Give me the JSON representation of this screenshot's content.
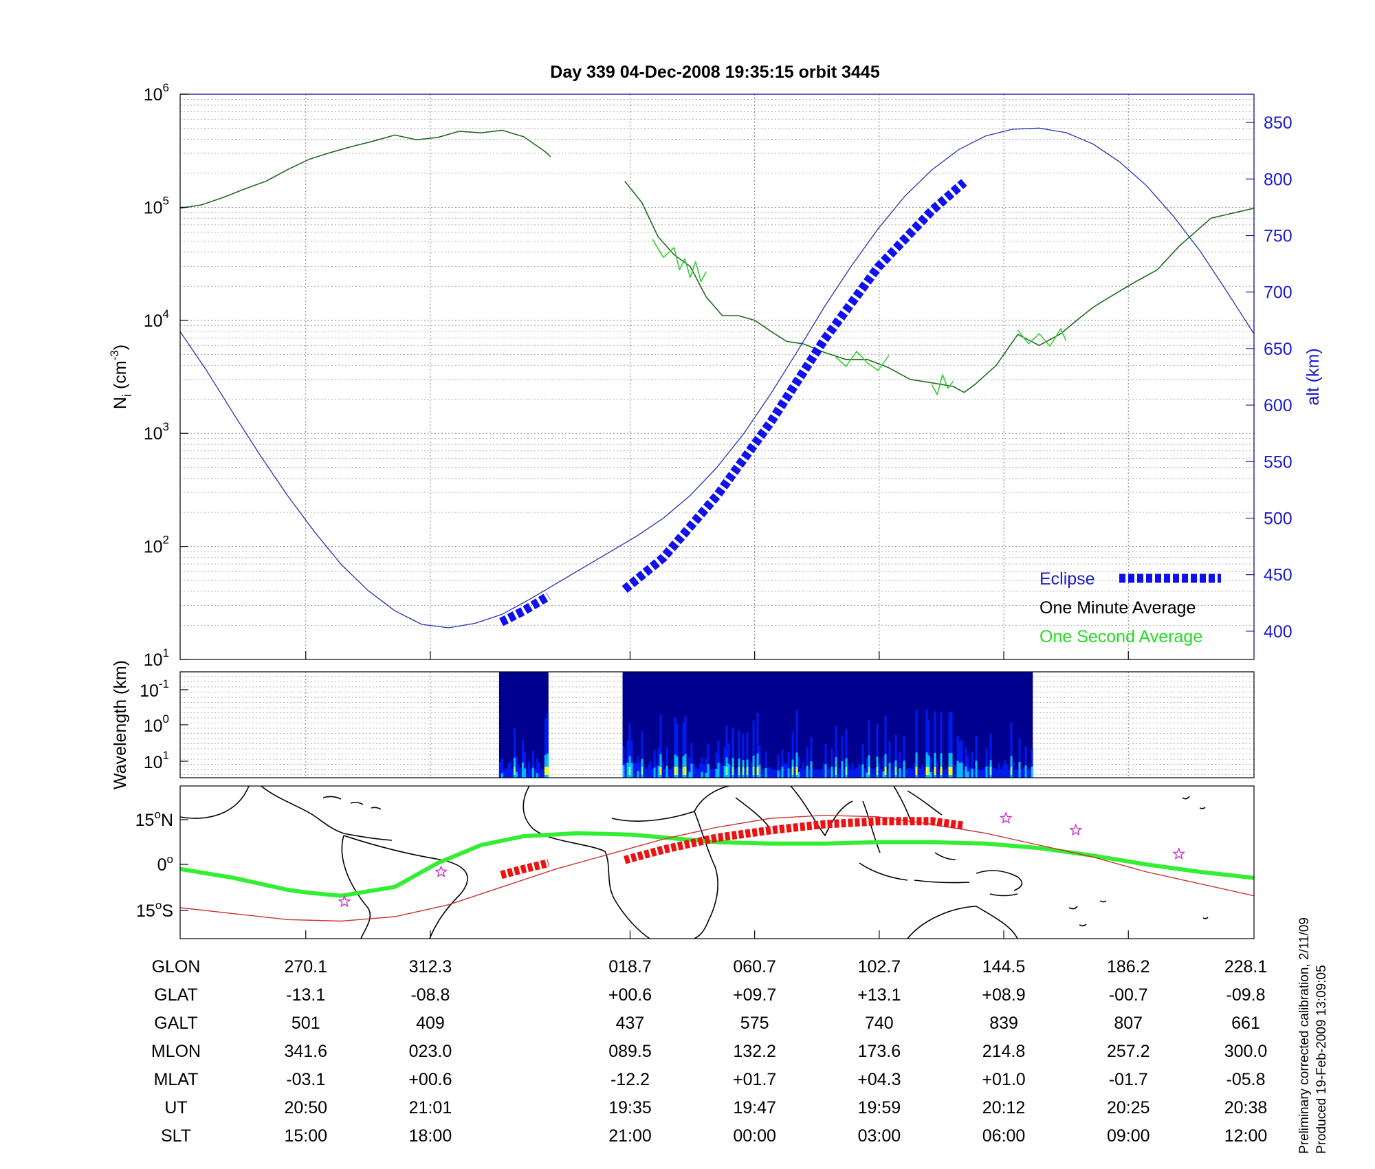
{
  "chart_data": [
    {
      "type": "line",
      "title": "Day 339  04-Dec-2008 19:35:15   orbit 3445",
      "yscale": "log",
      "ylabel": "N",
      "ylabel_sub": "i",
      "ylabel_units": "(cm",
      "ylabel_units_exp": "-3",
      "ylabel_units_close": ")",
      "ylim": [
        10,
        1000000
      ],
      "yticks": [
        {
          "base": "10",
          "exp": "1",
          "value": 10
        },
        {
          "base": "10",
          "exp": "2",
          "value": 100
        },
        {
          "base": "10",
          "exp": "3",
          "value": 1000
        },
        {
          "base": "10",
          "exp": "4",
          "value": 10000
        },
        {
          "base": "10",
          "exp": "5",
          "value": 100000
        },
        {
          "base": "10",
          "exp": "6",
          "value": 1000000
        }
      ],
      "y2label": "alt (km)",
      "y2lim": [
        375,
        875
      ],
      "y2ticks": [
        "400",
        "450",
        "500",
        "550",
        "600",
        "650",
        "700",
        "750",
        "800",
        "850"
      ],
      "xlim": [
        0,
        1
      ],
      "xgrid": [
        0.117,
        0.233,
        0.419,
        0.535,
        0.651,
        0.767,
        0.883
      ],
      "grid": true,
      "legend_position": "bottom-right",
      "legend": [
        {
          "label": "Eclipse",
          "color": "#1010ee"
        },
        {
          "label": "One Minute Average",
          "color": "#000000"
        },
        {
          "label": "One Second Average",
          "color": "#22dd22"
        }
      ],
      "series": [
        {
          "name": "One Minute Average",
          "axis": "left",
          "color": "#1f6b1f",
          "segments": [
            {
              "x": [
                0,
                0.02,
                0.04,
                0.06,
                0.08,
                0.1,
                0.12,
                0.14,
                0.16,
                0.18,
                0.2,
                0.22,
                0.24,
                0.26,
                0.28,
                0.3,
                0.32,
                0.34,
                0.345
              ],
              "y": [
                98000,
                105000,
                122000,
                145000,
                170000,
                215000,
                265000,
                305000,
                345000,
                385000,
                435000,
                395000,
                415000,
                470000,
                455000,
                480000,
                420000,
                310000,
                280000
              ]
            },
            {
              "x": [
                0.414,
                0.43,
                0.445,
                0.46,
                0.475,
                0.49,
                0.505,
                0.52,
                0.535,
                0.55,
                0.565,
                0.58,
                0.6,
                0.62,
                0.64,
                0.66,
                0.68,
                0.7,
                0.72,
                0.73,
                0.74,
                0.76,
                0.78,
                0.8,
                0.82,
                0.835,
                0.85,
                0.87,
                0.89,
                0.91,
                0.93,
                0.96,
                1.0
              ],
              "y": [
                170000,
                110000,
                55000,
                38000,
                30000,
                16000,
                11000,
                11000,
                10000,
                8000,
                6500,
                6200,
                5200,
                4500,
                4500,
                3800,
                3000,
                2800,
                2600,
                2300,
                2700,
                4000,
                7500,
                6000,
                7600,
                10000,
                13000,
                17000,
                22000,
                28000,
                45000,
                80000,
                98000
              ]
            }
          ]
        },
        {
          "name": "One Second Average",
          "axis": "left",
          "color": "#33cc33",
          "segments": [
            {
              "x": [
                0.44,
                0.45,
                0.46,
                0.465,
                0.47,
                0.475,
                0.48,
                0.485,
                0.49
              ],
              "y": [
                52000,
                36000,
                44000,
                28000,
                35000,
                24000,
                33000,
                22000,
                27000
              ]
            },
            {
              "x": [
                0.61,
                0.62,
                0.63,
                0.64,
                0.65,
                0.66
              ],
              "y": [
                4800,
                3900,
                5300,
                4200,
                3600,
                4900
              ]
            },
            {
              "x": [
                0.7,
                0.705,
                0.71,
                0.715,
                0.72
              ],
              "y": [
                2700,
                2200,
                3300,
                2500,
                2900
              ]
            },
            {
              "x": [
                0.78,
                0.79,
                0.8,
                0.81,
                0.82,
                0.825
              ],
              "y": [
                8200,
                6200,
                7600,
                5900,
                8400,
                6600
              ]
            }
          ]
        },
        {
          "name": "alt",
          "axis": "right",
          "color": "#2233aa",
          "x": [
            0,
            0.025,
            0.05,
            0.075,
            0.1,
            0.125,
            0.15,
            0.175,
            0.2,
            0.225,
            0.25,
            0.275,
            0.3,
            0.325,
            0.35,
            0.375,
            0.4,
            0.425,
            0.45,
            0.475,
            0.5,
            0.525,
            0.55,
            0.575,
            0.6,
            0.625,
            0.65,
            0.675,
            0.7,
            0.725,
            0.75,
            0.775,
            0.8,
            0.825,
            0.85,
            0.875,
            0.9,
            0.925,
            0.95,
            0.975,
            1.0
          ],
          "y": [
            665,
            630,
            592,
            555,
            520,
            488,
            459,
            436,
            418,
            406,
            403,
            407,
            415,
            428,
            442,
            456,
            470,
            484,
            500,
            520,
            545,
            575,
            610,
            648,
            687,
            723,
            756,
            785,
            808,
            826,
            838,
            844,
            845,
            841,
            831,
            815,
            794,
            767,
            736,
            700,
            663
          ]
        },
        {
          "name": "Eclipse",
          "axis": "right",
          "color": "#1010ee",
          "dashed": true,
          "segments": [
            {
              "x": [
                0.299,
                0.32,
                0.343
              ],
              "y": [
                408,
                418,
                431
              ]
            },
            {
              "x": [
                0.414,
                0.45,
                0.5,
                0.55,
                0.6,
                0.65,
                0.7,
                0.73
              ],
              "y": [
                437,
                465,
                520,
                585,
                658,
                722,
                772,
                797
              ]
            }
          ]
        }
      ]
    },
    {
      "type": "heatmap",
      "ylabel": "Wavelength (km)",
      "yscale": "log",
      "yticks": [
        {
          "base": "10",
          "exp": "-1"
        },
        {
          "base": "10",
          "exp": "0"
        },
        {
          "base": "10",
          "exp": "1"
        }
      ],
      "blocks": [
        {
          "x_start": 0.297,
          "x_end": 0.343
        },
        {
          "x_start": 0.412,
          "x_end": 0.794
        }
      ],
      "colormap": [
        "#00008f",
        "#0020ff",
        "#00c0ff",
        "#80ff80",
        "#ffff00"
      ]
    },
    {
      "type": "map",
      "yticks": [
        {
          "num": "15",
          "deg": "o",
          "hem": "N"
        },
        {
          "num": "0",
          "deg": "o",
          "hem": ""
        },
        {
          "num": "15",
          "deg": "o",
          "hem": "S"
        }
      ],
      "series": [
        {
          "name": "magnetic equator",
          "color": "#33ee33",
          "x": [
            0,
            0.05,
            0.1,
            0.12,
            0.15,
            0.2,
            0.24,
            0.28,
            0.32,
            0.37,
            0.42,
            0.5,
            0.55,
            0.6,
            0.65,
            0.7,
            0.75,
            0.8,
            0.85,
            0.9,
            0.95,
            1.0
          ],
          "y": [
            -2,
            -5,
            -9,
            -10,
            -11,
            -8,
            0,
            6,
            9,
            10,
            9.5,
            7,
            6.5,
            6.5,
            7,
            7,
            6.5,
            5,
            2.5,
            -0.5,
            -3,
            -5
          ]
        },
        {
          "name": "orbit track",
          "color": "#cc3333",
          "x": [
            0,
            0.05,
            0.1,
            0.15,
            0.2,
            0.25,
            0.3,
            0.35,
            0.4,
            0.45,
            0.5,
            0.55,
            0.6,
            0.65,
            0.7,
            0.75,
            0.8,
            0.85,
            0.9,
            0.95,
            1.0
          ],
          "y": [
            -15,
            -17,
            -19,
            -19.5,
            -18,
            -14,
            -8,
            -2,
            3,
            8,
            12,
            15,
            16,
            15.5,
            13,
            10,
            6,
            2,
            -3,
            -7,
            -11
          ]
        },
        {
          "name": "eclipse track",
          "color": "#ee1111",
          "dashed": true,
          "segments": [
            {
              "x": [
                0.299,
                0.32,
                0.343
              ],
              "y": [
                -4,
                -2,
                0
              ]
            },
            {
              "x": [
                0.414,
                0.45,
                0.5,
                0.55,
                0.6,
                0.65,
                0.7,
                0.73
              ],
              "y": [
                1,
                4.5,
                8.5,
                11,
                13,
                14,
                14,
                12.5
              ]
            }
          ]
        }
      ],
      "markers": [
        {
          "x": 0.153,
          "y": -13
        },
        {
          "x": 0.243,
          "y": -3
        },
        {
          "x": 0.769,
          "y": 15
        },
        {
          "x": 0.834,
          "y": 11
        },
        {
          "x": 0.93,
          "y": 3
        }
      ],
      "marker_color": "#cc33cc"
    },
    {
      "type": "table",
      "columns_x": [
        0.117,
        0.233,
        0.419,
        0.535,
        0.651,
        0.767,
        0.883,
        1.0
      ],
      "rows": [
        {
          "label": "GLON",
          "values": [
            "270.1",
            "312.3",
            "018.7",
            "060.7",
            "102.7",
            "144.5",
            "186.2",
            "228.1"
          ]
        },
        {
          "label": "GLAT",
          "values": [
            "-13.1",
            "-08.8",
            "+00.6",
            "+09.7",
            "+13.1",
            "+08.9",
            "-00.7",
            "-09.8"
          ]
        },
        {
          "label": "GALT",
          "values": [
            "501",
            "409",
            "437",
            "575",
            "740",
            "839",
            "807",
            "661"
          ]
        },
        {
          "label": "MLON",
          "values": [
            "341.6",
            "023.0",
            "089.5",
            "132.2",
            "173.6",
            "214.8",
            "257.2",
            "300.0"
          ]
        },
        {
          "label": "MLAT",
          "values": [
            "-03.1",
            "+00.6",
            "-12.2",
            "+01.7",
            "+04.3",
            "+01.0",
            "-01.7",
            "-05.8"
          ]
        },
        {
          "label": "UT",
          "values": [
            "20:50",
            "21:01",
            "19:35",
            "19:47",
            "19:59",
            "20:12",
            "20:25",
            "20:38"
          ]
        },
        {
          "label": "SLT",
          "values": [
            "15:00",
            "18:00",
            "21:00",
            "00:00",
            "03:00",
            "06:00",
            "09:00",
            "12:00"
          ]
        }
      ]
    }
  ],
  "footer": {
    "line1": "Preliminary corrected calibration, 2/11/09",
    "line2": "Produced 19-Feb-2009 13:09:05"
  }
}
